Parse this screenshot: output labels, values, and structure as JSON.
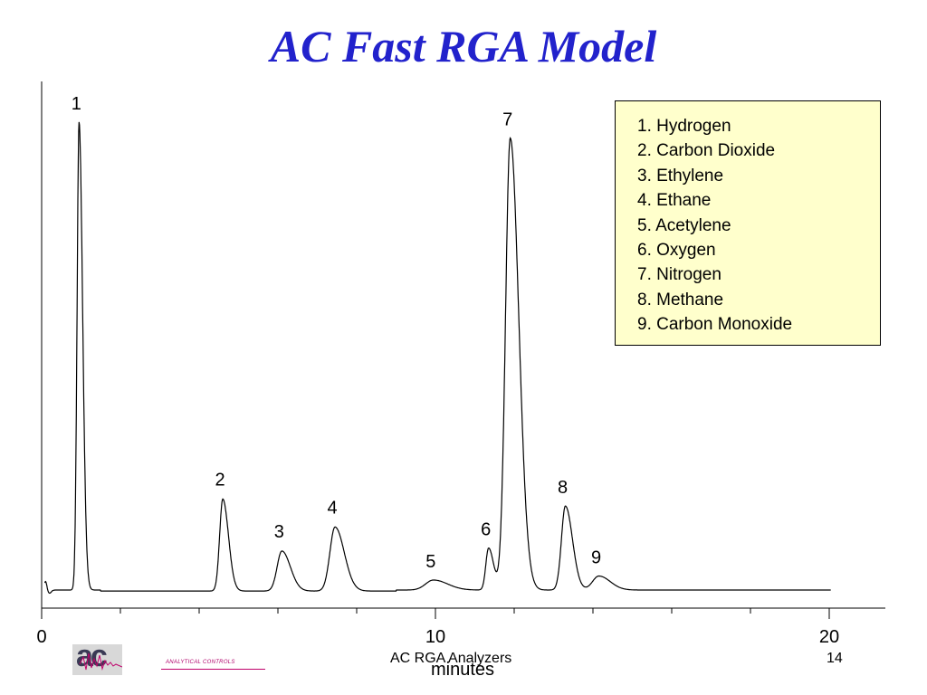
{
  "slide": {
    "title": "AC Fast RGA Model",
    "footer_text": "AC RGA Analyzers",
    "page_number": "14",
    "logo_caption": "ANALYTICAL CONTROLS",
    "logo_letters": "ac"
  },
  "chart_data": {
    "type": "line",
    "title": "",
    "xlabel": "minutes",
    "ylabel": "",
    "xlim": [
      0,
      22
    ],
    "ylim": [
      0,
      130
    ],
    "x_ticks": [
      {
        "value": 0,
        "label": "0"
      },
      {
        "value": 10,
        "label": "10"
      },
      {
        "value": 20,
        "label": "20"
      }
    ],
    "x_minor_ticks": [
      2,
      4,
      6,
      8,
      12,
      14,
      16,
      18
    ],
    "grid": false,
    "baseline": 2,
    "peaks": [
      {
        "label": "1",
        "retention_time": 0.95,
        "height": 117,
        "width": 0.05
      },
      {
        "label": "2",
        "retention_time": 4.6,
        "height": 23,
        "width": 0.08
      },
      {
        "label": "3",
        "retention_time": 6.1,
        "height": 10,
        "width": 0.12
      },
      {
        "label": "4",
        "retention_time": 7.45,
        "height": 16,
        "width": 0.13
      },
      {
        "label": "5",
        "retention_time": 9.95,
        "height": 2.5,
        "width": 0.2
      },
      {
        "label": "6",
        "retention_time": 11.35,
        "height": 10.5,
        "width": 0.07
      },
      {
        "label": "7",
        "retention_time": 11.9,
        "height": 113,
        "width": 0.12
      },
      {
        "label": "8",
        "retention_time": 13.3,
        "height": 21,
        "width": 0.1
      },
      {
        "label": "9",
        "retention_time": 14.15,
        "height": 3.5,
        "width": 0.16
      }
    ],
    "legend": {
      "placement": "top-right",
      "items": [
        "1. Hydrogen",
        "2. Carbon Dioxide",
        "3. Ethylene",
        "4. Ethane",
        "5. Acetylene",
        "6. Oxygen",
        "7. Nitrogen",
        "8. Methane",
        "9. Carbon Monoxide"
      ]
    },
    "colors": {
      "trace": "#000000",
      "legend_background": "#ffffcc",
      "title": "#2222cc",
      "logo_accent": "#c0006a"
    }
  }
}
